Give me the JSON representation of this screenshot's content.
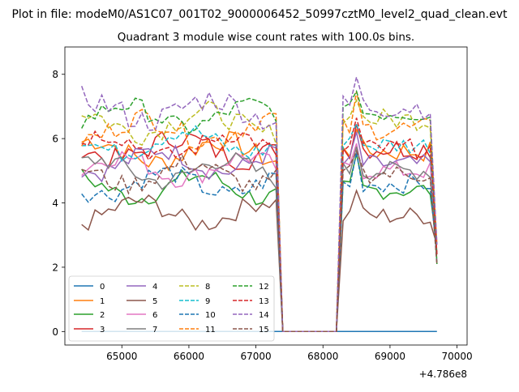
{
  "chart_data": {
    "type": "line",
    "suptitle": "Plot in file: modeM0/AS1C07_001T02_9000006452_50997cztM0_level2_quad_clean.evt",
    "title": "Quadrant 3 module wise count rates with 100.0s bins.",
    "xlabel": "",
    "ylabel": "",
    "offset_text": "+4.786e8",
    "xlim": [
      64150,
      70150
    ],
    "ylim": [
      -0.42,
      8.85
    ],
    "xticks": [
      65000,
      66000,
      67000,
      68000,
      69000,
      70000
    ],
    "yticks": [
      0,
      2,
      4,
      6,
      8
    ],
    "grid": false,
    "legend": {
      "placement": "lower-left",
      "ncols": 4
    },
    "seg1": {
      "x0": 64400,
      "n": 30,
      "step": 100
    },
    "drop_x": [
      67400,
      68200
    ],
    "seg2": {
      "x0": 68300,
      "n": 15,
      "step": 100
    },
    "series": [
      {
        "name": "0",
        "color": "#1f77b4",
        "dash": "solid",
        "base": 0.0,
        "amp": 0.0,
        "flat": 0.0
      },
      {
        "name": "1",
        "color": "#ff7f0e",
        "dash": "solid",
        "base": 5.6,
        "amp": 0.35,
        "flat": 5.6
      },
      {
        "name": "2",
        "color": "#2ca02c",
        "dash": "solid",
        "base": 4.5,
        "amp": 0.3,
        "flat": 4.4
      },
      {
        "name": "3",
        "color": "#d62728",
        "dash": "solid",
        "base": 5.7,
        "amp": 0.35,
        "flat": 5.7
      },
      {
        "name": "4",
        "color": "#9467bd",
        "dash": "solid",
        "base": 5.3,
        "amp": 0.3,
        "flat": 5.2
      },
      {
        "name": "5",
        "color": "#8c564b",
        "dash": "solid",
        "base": 3.7,
        "amp": 0.3,
        "flat": 3.6
      },
      {
        "name": "6",
        "color": "#e377c2",
        "dash": "solid",
        "base": 5.1,
        "amp": 0.3,
        "flat": 5.0
      },
      {
        "name": "7",
        "color": "#7f7f7f",
        "dash": "solid",
        "base": 5.0,
        "amp": 0.3,
        "flat": 5.0
      },
      {
        "name": "8",
        "color": "#bcbd22",
        "dash": "dash",
        "base": 6.5,
        "amp": 0.35,
        "flat": 6.6
      },
      {
        "name": "9",
        "color": "#17becf",
        "dash": "dash",
        "base": 5.9,
        "amp": 0.3,
        "flat": 5.8
      },
      {
        "name": "10",
        "color": "#1f77b4",
        "dash": "dash",
        "base": 4.6,
        "amp": 0.3,
        "flat": 4.6
      },
      {
        "name": "11",
        "color": "#ff7f0e",
        "dash": "dash",
        "base": 6.3,
        "amp": 0.35,
        "flat": 6.3
      },
      {
        "name": "12",
        "color": "#2ca02c",
        "dash": "dash",
        "base": 6.7,
        "amp": 0.3,
        "flat": 6.8
      },
      {
        "name": "13",
        "color": "#d62728",
        "dash": "dash",
        "base": 5.8,
        "amp": 0.3,
        "flat": 5.7
      },
      {
        "name": "14",
        "color": "#9467bd",
        "dash": "dash",
        "base": 6.9,
        "amp": 0.4,
        "flat": 7.0
      },
      {
        "name": "15",
        "color": "#8c564b",
        "dash": "dash",
        "base": 4.9,
        "amp": 0.3,
        "flat": 4.9
      }
    ]
  }
}
